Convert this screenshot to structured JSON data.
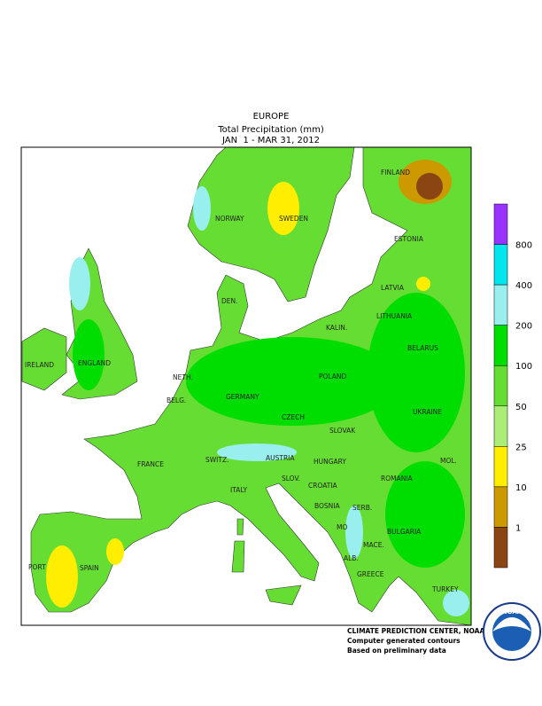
{
  "header": {
    "region": "EUROPE",
    "title": "Total Precipitation (mm)",
    "period": "JAN  1 - MAR 31, 2012"
  },
  "labels": [
    "FINLAND",
    "NORWAY",
    "SWEDEN",
    "ESTONIA",
    "LATVIA",
    "DEN.",
    "LITHUANIA",
    "KALIN.",
    "IRELAND",
    "ENGLAND",
    "NETH.",
    "GERMANY",
    "POLAND",
    "BELARUS",
    "BELG.",
    "CZECH",
    "UKRAINE",
    "SLOVAK",
    "FRANCE",
    "SWITZ.",
    "AUSTRIA",
    "HUNGARY",
    "MOL.",
    "ROMANIA",
    "SLOV.",
    "CROATIA",
    "ITALY",
    "BOSNIA",
    "SERB.",
    "BULGARIA",
    "MO",
    "MACE.",
    "ALB.",
    "PORT",
    "SPAIN",
    "GREECE",
    "TURKEY"
  ],
  "legend": {
    "levels": [
      800,
      400,
      200,
      100,
      50,
      25,
      10,
      1
    ],
    "colors": [
      "#9933ff",
      "#00e5ee",
      "#99eeee",
      "#00dd00",
      "#66dd33",
      "#aaee77",
      "#ffee00",
      "#cc9900",
      "#8b4513"
    ]
  },
  "credits": [
    "CLIMATE PREDICTION CENTER, NOAA",
    "Computer generated contours",
    "Based on preliminary data"
  ],
  "logo": {
    "text": "NOAA"
  }
}
